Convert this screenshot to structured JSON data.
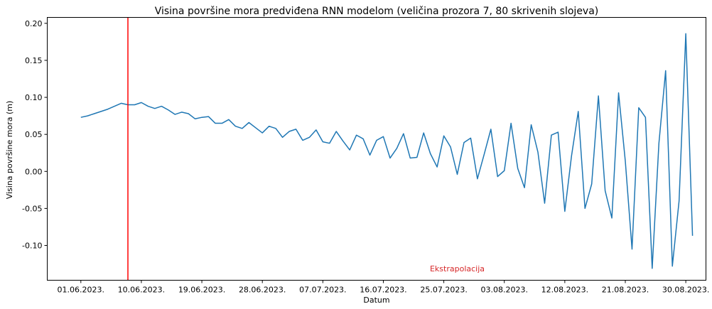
{
  "chart_data": {
    "type": "line",
    "title": "Visina površine mora predviđena RNN modelom (veličina prozora 7, 80 skrivenih slojeva)",
    "xlabel": "Datum",
    "ylabel": "Visina površine mora (m)",
    "x_start": "2023-06-01",
    "x_ticks": [
      {
        "date": "2023-06-01",
        "label": "01.06.2023."
      },
      {
        "date": "2023-06-10",
        "label": "10.06.2023."
      },
      {
        "date": "2023-06-19",
        "label": "19.06.2023."
      },
      {
        "date": "2023-06-28",
        "label": "28.06.2023."
      },
      {
        "date": "2023-07-07",
        "label": "07.07.2023."
      },
      {
        "date": "2023-07-16",
        "label": "16.07.2023."
      },
      {
        "date": "2023-07-25",
        "label": "25.07.2023."
      },
      {
        "date": "2023-08-03",
        "label": "03.08.2023."
      },
      {
        "date": "2023-08-12",
        "label": "12.08.2023."
      },
      {
        "date": "2023-08-21",
        "label": "21.08.2023."
      },
      {
        "date": "2023-08-30",
        "label": "30.08.2023."
      }
    ],
    "y_ticks": [
      -0.1,
      -0.05,
      0.0,
      0.05,
      0.1,
      0.15,
      0.2
    ],
    "ylim": [
      -0.147,
      0.208
    ],
    "xlim": [
      "2023-05-27",
      "2023-09-02"
    ],
    "grid": false,
    "series": [
      {
        "color": "#1f77b4",
        "values": [
          0.073,
          0.075,
          0.078,
          0.081,
          0.084,
          0.088,
          0.092,
          0.09,
          0.09,
          0.093,
          0.088,
          0.085,
          0.088,
          0.083,
          0.077,
          0.08,
          0.078,
          0.071,
          0.073,
          0.074,
          0.065,
          0.065,
          0.07,
          0.061,
          0.058,
          0.066,
          0.059,
          0.052,
          0.061,
          0.058,
          0.046,
          0.054,
          0.057,
          0.042,
          0.046,
          0.056,
          0.04,
          0.038,
          0.054,
          0.041,
          0.029,
          0.049,
          0.044,
          0.022,
          0.042,
          0.047,
          0.018,
          0.031,
          0.051,
          0.018,
          0.019,
          0.052,
          0.024,
          0.006,
          0.048,
          0.033,
          -0.004,
          0.039,
          0.045,
          -0.01,
          0.023,
          0.057,
          -0.007,
          0.001,
          0.065,
          0.004,
          -0.022,
          0.063,
          0.026,
          -0.043,
          0.049,
          0.053,
          -0.054,
          0.021,
          0.081,
          -0.05,
          -0.017,
          0.102,
          -0.026,
          -0.063,
          0.106,
          0.014,
          -0.105,
          0.086,
          0.073,
          -0.131,
          0.038,
          0.136,
          -0.128,
          -0.04,
          0.186,
          -0.087
        ]
      }
    ],
    "vline": {
      "date": "2023-06-08",
      "color": "#ff0000"
    },
    "annotation": {
      "text": "Ekstrapolacija",
      "date": "2023-07-27",
      "y": -0.131,
      "color": "#d62728"
    }
  }
}
